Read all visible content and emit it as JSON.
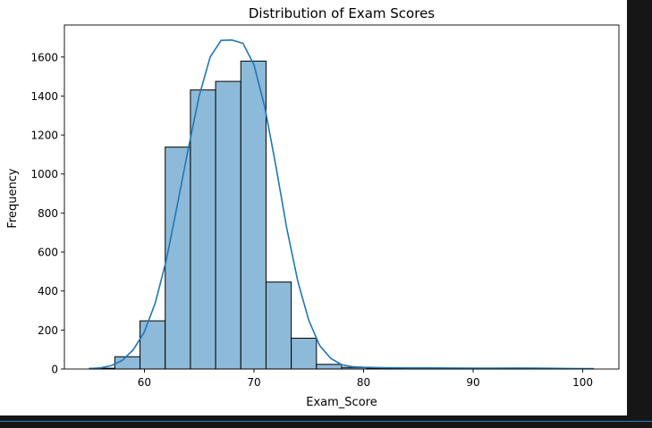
{
  "chart_data": {
    "type": "histogram",
    "title": "Distribution of Exam Scores",
    "xlabel": "Exam_Score",
    "ylabel": "Frequency",
    "xlim": [
      52.7,
      103.3
    ],
    "ylim": [
      0,
      1764
    ],
    "xticks": [
      60,
      70,
      80,
      90,
      100
    ],
    "yticks": [
      0,
      200,
      400,
      600,
      800,
      1000,
      1200,
      1400,
      1600
    ],
    "bin_start": 55,
    "bin_width": 2.3,
    "counts": [
      4,
      63,
      247,
      1138,
      1431,
      1475,
      1579,
      446,
      158,
      24,
      8,
      5,
      4,
      3,
      3,
      2,
      1,
      2,
      2,
      1
    ],
    "bar_color": "#8dbad9",
    "bar_edge_color": "#000000",
    "kde": {
      "color": "#1f77b4",
      "points": [
        [
          55,
          2
        ],
        [
          56,
          6
        ],
        [
          57,
          18
        ],
        [
          58,
          45
        ],
        [
          59,
          100
        ],
        [
          60,
          190
        ],
        [
          61,
          340
        ],
        [
          62,
          560
        ],
        [
          63,
          840
        ],
        [
          64,
          1130
        ],
        [
          65,
          1400
        ],
        [
          66,
          1600
        ],
        [
          67,
          1685
        ],
        [
          68,
          1687
        ],
        [
          69,
          1670
        ],
        [
          70,
          1560
        ],
        [
          71,
          1340
        ],
        [
          72,
          1040
        ],
        [
          73,
          720
        ],
        [
          74,
          450
        ],
        [
          75,
          250
        ],
        [
          76,
          120
        ],
        [
          77,
          55
        ],
        [
          78,
          22
        ],
        [
          79,
          12
        ],
        [
          80,
          9
        ],
        [
          82,
          7
        ],
        [
          84,
          6
        ],
        [
          86,
          6
        ],
        [
          88,
          5
        ],
        [
          90,
          4
        ],
        [
          92,
          4
        ],
        [
          94,
          5
        ],
        [
          96,
          4
        ],
        [
          98,
          3
        ],
        [
          100,
          2
        ],
        [
          101,
          2
        ]
      ]
    }
  }
}
